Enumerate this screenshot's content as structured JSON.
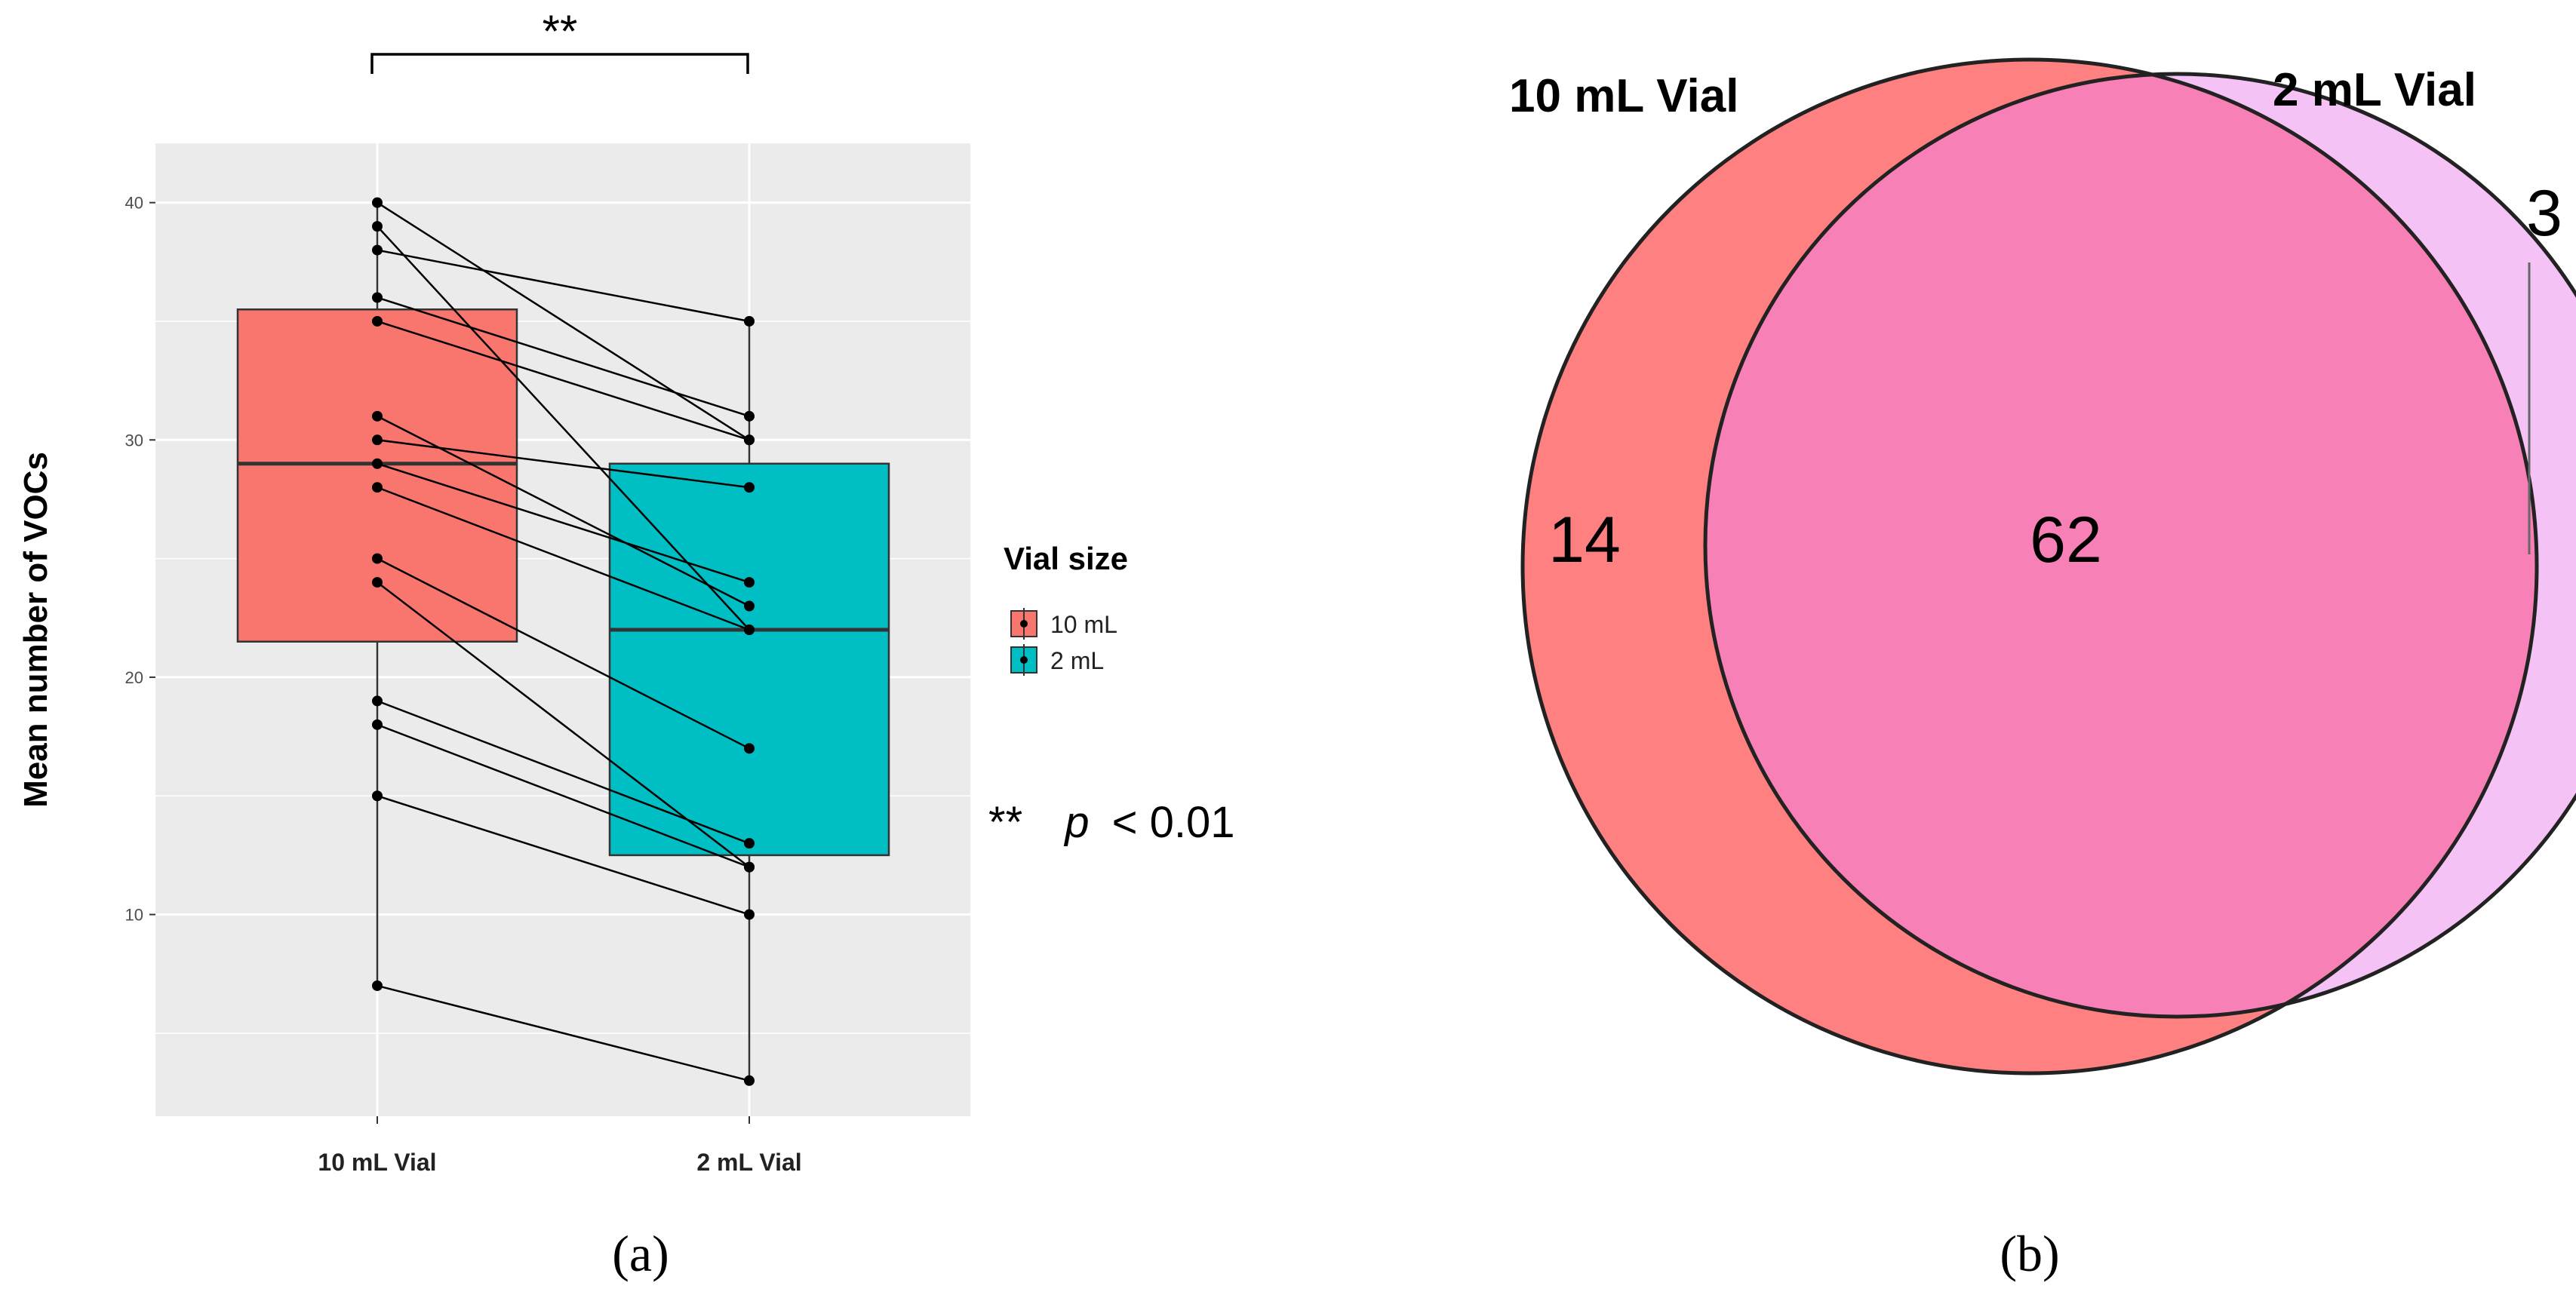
{
  "chart_data": [
    {
      "type": "box",
      "panel_label": "(a)",
      "ylabel": "Mean number of VOCs",
      "categories": [
        "10 mL Vial",
        "2 mL Vial"
      ],
      "yticks": [
        10,
        20,
        30,
        40
      ],
      "ylim": [
        1.5,
        42.5
      ],
      "grid": true,
      "boxes": [
        {
          "category": "10 mL Vial",
          "q1": 21.5,
          "median": 29,
          "q3": 35.5,
          "whisker_low": 7,
          "whisker_high": 40,
          "color": "#F8766D"
        },
        {
          "category": "2 mL Vial",
          "q1": 12.5,
          "median": 22,
          "q3": 29,
          "whisker_low": 3,
          "whisker_high": 35,
          "color": "#00BFC4"
        }
      ],
      "paired_points": [
        {
          "x1": 40,
          "x2": 30
        },
        {
          "x1": 39,
          "x2": 22
        },
        {
          "x1": 38,
          "x2": 35
        },
        {
          "x1": 36,
          "x2": 31
        },
        {
          "x1": 35,
          "x2": 30
        },
        {
          "x1": 31,
          "x2": 23
        },
        {
          "x1": 30,
          "x2": 28
        },
        {
          "x1": 29,
          "x2": 24
        },
        {
          "x1": 28,
          "x2": 22
        },
        {
          "x1": 25,
          "x2": 17
        },
        {
          "x1": 24,
          "x2": 12
        },
        {
          "x1": 19,
          "x2": 13
        },
        {
          "x1": 18,
          "x2": 12
        },
        {
          "x1": 15,
          "x2": 10
        },
        {
          "x1": 7,
          "x2": 3
        }
      ],
      "significance_label": "**",
      "legend": {
        "title": "Vial size",
        "position": "right",
        "entries": [
          {
            "label": "10 mL",
            "color": "#F8766D"
          },
          {
            "label": "2 mL",
            "color": "#00BFC4"
          }
        ]
      },
      "annotation": {
        "stars": "**",
        "p": "p",
        "rest": "< 0.01"
      }
    },
    {
      "type": "venn",
      "panel_label": "(b)",
      "sets": [
        {
          "name": "10 mL Vial",
          "only": 14,
          "color": "#FF8080"
        },
        {
          "name": "2 mL Vial",
          "only": 3,
          "color": "#F5C2F5"
        }
      ],
      "intersection": 62,
      "intersection_color": "#F780B6"
    }
  ]
}
